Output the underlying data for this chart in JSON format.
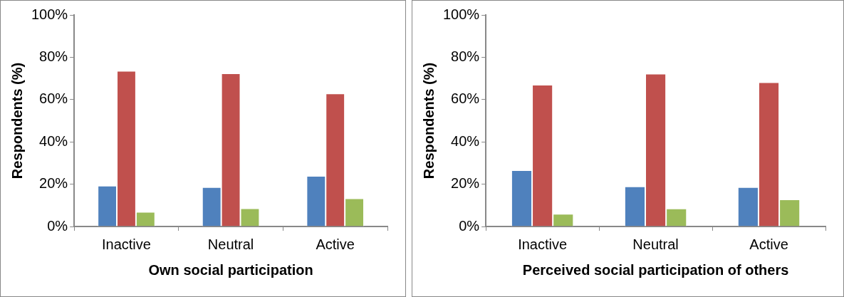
{
  "chart_data": [
    {
      "type": "bar",
      "xlabel": "Own social participation",
      "ylabel": "Respondents (%)",
      "categories": [
        "Inactive",
        "Neutral",
        "Active"
      ],
      "series": [
        {
          "color": "#4f81bd",
          "values": [
            19.3,
            18.6,
            23.9
          ]
        },
        {
          "color": "#c0504d",
          "values": [
            73.6,
            72.4,
            62.9
          ]
        },
        {
          "color": "#9bbb59",
          "values": [
            6.9,
            8.6,
            13.3
          ]
        }
      ],
      "ylim": [
        0,
        100
      ],
      "yticks": [
        {
          "value": 0,
          "label": "0%"
        },
        {
          "value": 20,
          "label": "20%"
        },
        {
          "value": 40,
          "label": "40%"
        },
        {
          "value": 60,
          "label": "60%"
        },
        {
          "value": 80,
          "label": "80%"
        },
        {
          "value": 100,
          "label": "100%"
        }
      ],
      "grid": false,
      "legend": false
    },
    {
      "type": "bar",
      "xlabel": "Perceived social participation of others",
      "ylabel": "Respondents (%)",
      "categories": [
        "Inactive",
        "Neutral",
        "Active"
      ],
      "series": [
        {
          "color": "#4f81bd",
          "values": [
            26.6,
            18.9,
            18.6
          ]
        },
        {
          "color": "#c0504d",
          "values": [
            67.0,
            72.2,
            68.2
          ]
        },
        {
          "color": "#9bbb59",
          "values": [
            6.0,
            8.5,
            12.8
          ]
        }
      ],
      "ylim": [
        0,
        100
      ],
      "yticks": [
        {
          "value": 0,
          "label": "0%"
        },
        {
          "value": 20,
          "label": "20%"
        },
        {
          "value": 40,
          "label": "40%"
        },
        {
          "value": 60,
          "label": "60%"
        },
        {
          "value": 80,
          "label": "80%"
        },
        {
          "value": 100,
          "label": "100%"
        }
      ],
      "grid": false,
      "legend": false
    }
  ]
}
